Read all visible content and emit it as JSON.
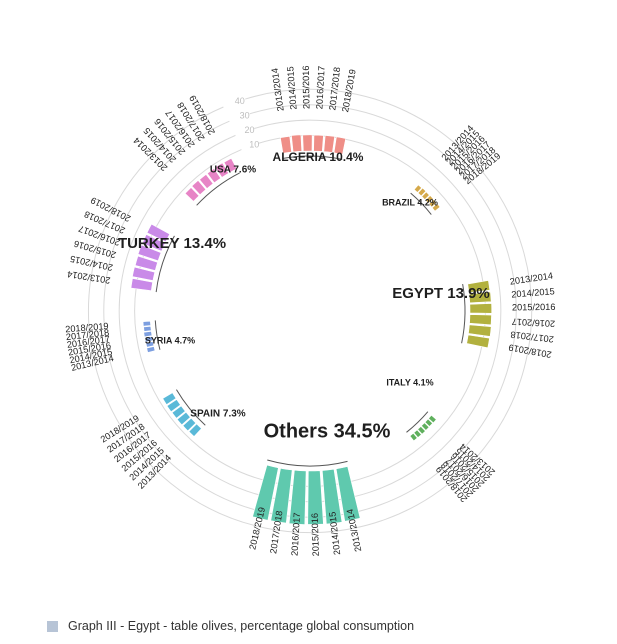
{
  "chart_data": {
    "type": "circular-bar",
    "years": [
      "2013/2014",
      "2014/2015",
      "2015/2016",
      "2016/2017",
      "2017/2018",
      "2018/2019"
    ],
    "scale_ticks": [
      "10",
      "20",
      "30",
      "40"
    ],
    "countries": [
      {
        "name": "ALGERIA",
        "share": "10.4%",
        "color": "#ef8e87",
        "values": [
          10.2,
          10.6,
          10.4,
          10.3,
          10.5,
          10.4
        ]
      },
      {
        "name": "BRAZIL",
        "share": "4.2%",
        "color": "#d5a94a",
        "values": [
          4.0,
          4.3,
          4.1,
          4.3,
          4.2,
          4.2
        ]
      },
      {
        "name": "EGYPT",
        "share": "13.9%",
        "color": "#b2b13f",
        "values": [
          13.5,
          13.8,
          14.0,
          13.9,
          14.1,
          13.9
        ]
      },
      {
        "name": "ITALY",
        "share": "4.1%",
        "color": "#5fb05d",
        "values": [
          4.2,
          4.0,
          4.1,
          4.2,
          4.1,
          4.0
        ]
      },
      {
        "name": "Others",
        "share": "34.5%",
        "color": "#5fc9ae",
        "values": [
          34.3,
          34.6,
          34.5,
          34.6,
          34.4,
          34.5
        ]
      },
      {
        "name": "SPAIN",
        "share": "7.3%",
        "color": "#5ab9d8",
        "values": [
          7.0,
          7.2,
          7.4,
          7.3,
          7.5,
          7.3
        ]
      },
      {
        "name": "SYRIA",
        "share": "4.7%",
        "color": "#7d9fe0",
        "values": [
          4.8,
          4.6,
          4.7,
          4.9,
          4.6,
          4.7
        ]
      },
      {
        "name": "TURKEY",
        "share": "13.4%",
        "color": "#c98ae8",
        "values": [
          13.2,
          13.5,
          13.3,
          13.6,
          13.4,
          13.4
        ]
      },
      {
        "name": "USA",
        "share": "7.6%",
        "color": "#e784c6",
        "values": [
          7.4,
          7.7,
          7.5,
          7.6,
          7.8,
          7.6
        ]
      }
    ]
  },
  "caption": {
    "text": "Graph III - Egypt - table olives, percentage global consumption",
    "marker_color": "#b7c4d6"
  }
}
